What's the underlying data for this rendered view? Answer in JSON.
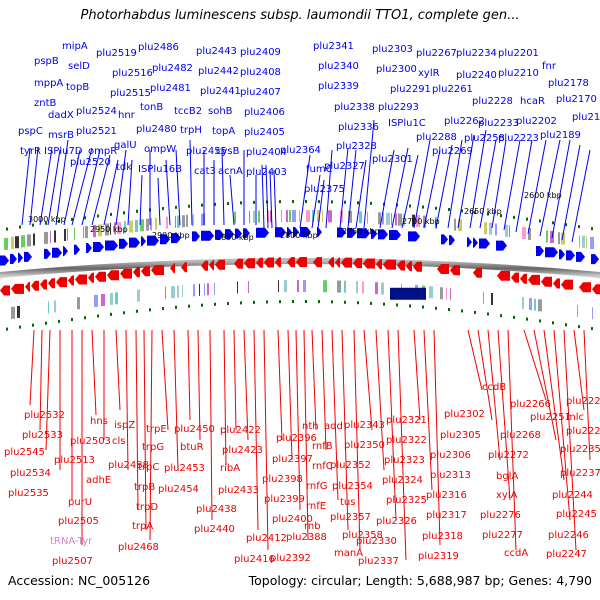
{
  "title": "Photorhabdus luminescens subsp. laumondii TTO1, complete gen...",
  "accession": "Accession: NC_005126",
  "summary": "Topology: circular; Length: 5,688,987 bp; Genes: 4,790",
  "colors": {
    "forward": "#0000ee",
    "reverse": "#ee0000",
    "trna": "#cc88cc",
    "ruler": "#006600",
    "backbone": "#888888"
  },
  "ruler_ticks": [
    "3000 kbp",
    "2950 kbp",
    "2900 kbp",
    "2850 kbp",
    "2800 kbp",
    "2750 kbp",
    "2700 kbp",
    "2650 kbp",
    "2600 kbp"
  ],
  "forward_labels": [
    "pspB",
    "mipA",
    "plu2519",
    "plu2486",
    "plu2443",
    "plu2409",
    "plu2341",
    "plu2303",
    "plu2267",
    "plu2234",
    "plu2201",
    "selD",
    "plu2516",
    "plu2482",
    "plu2442",
    "plu2408",
    "plu2340",
    "plu2300",
    "xylR",
    "plu2240",
    "plu2210",
    "fnr",
    "plu2178",
    "mppA",
    "topB",
    "plu2515",
    "plu2481",
    "plu2441",
    "plu2407",
    "plu2339",
    "plu2291",
    "plu2261",
    "plu2170",
    "zntB",
    "dadX",
    "plu2524",
    "hnr",
    "tonB",
    "sohB",
    "plu2406",
    "plu2338",
    "plu2293",
    "plu2228",
    "hcaR",
    "plu2169",
    "pspC",
    "msrB",
    "plu2521",
    "plu2480",
    "tccB2",
    "topA",
    "plu2405",
    "plu2336",
    "ISPlu1C",
    "plu2262",
    "plu2233",
    "plu2202",
    "plu2189",
    "tyrR",
    "ISPlu7D",
    "ompR",
    "plu2520",
    "galU",
    "ompW",
    "trpH",
    "plu2455",
    "cysB",
    "plu2404",
    "plu2364",
    "plu2328",
    "plu2288",
    "plu2258",
    "plu2223",
    "tdk",
    "ISPlu16B",
    "cat3",
    "acnA",
    "plu2403",
    "fumC",
    "plu2327",
    "plu2301",
    "plu2269",
    "plu2375"
  ],
  "reverse_labels": [
    "plu2532",
    "plu2533",
    "plu2545",
    "plu2534",
    "plu2535",
    "hns",
    "ispZ",
    "plu2503",
    "cls",
    "plu2513",
    "plu2488",
    "adhE",
    "purU",
    "plu2505",
    "tRNA-Tyr",
    "plu2507",
    "trpE",
    "trpG",
    "trpC",
    "trpB",
    "trpD",
    "trpA",
    "plu2468",
    "plu2450",
    "btuR",
    "plu2453",
    "plu2454",
    "plu2422",
    "plu2423",
    "ribA",
    "plu2433",
    "plu2438",
    "plu2440",
    "plu2412",
    "plu2416",
    "plu2396",
    "plu2397",
    "plu2398",
    "plu2399",
    "plu2400",
    "plu2388",
    "plu2392",
    "nth",
    "add",
    "rnfB",
    "rnfC",
    "rnfG",
    "rnfE",
    "rnb",
    "plu2343",
    "plu2350",
    "plu2352",
    "plu2354",
    "tus",
    "plu2357",
    "plu2358",
    "manA",
    "plu2321",
    "plu2322",
    "plu2323",
    "plu2324",
    "plu2325",
    "plu2326",
    "plu2330",
    "plu2337",
    "plu2302",
    "plu2305",
    "plu2306",
    "plu2313",
    "plu2316",
    "plu2317",
    "plu2318",
    "plu2319",
    "ccdB",
    "plu2266",
    "plu2268",
    "plu2272",
    "bglA",
    "xylA",
    "plu2276",
    "plu2277",
    "ccdA",
    "plu2225",
    "plu2251",
    "mlc",
    "plu2227",
    "plu2235",
    "plu2237",
    "plu2244",
    "plu2245",
    "plu2246",
    "plu2247"
  ]
}
